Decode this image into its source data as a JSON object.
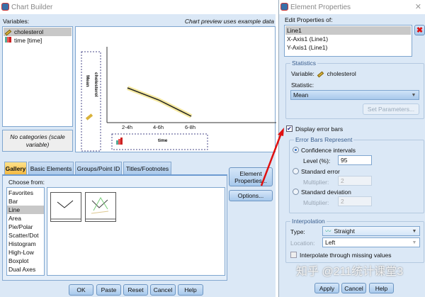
{
  "chart_builder": {
    "title": "Chart Builder",
    "variables_label": "Variables:",
    "preview_note": "Chart preview uses example data",
    "variables": [
      {
        "name": "cholesterol",
        "icon": "scale-ruler-icon",
        "selected": true
      },
      {
        "name": "time [time]",
        "icon": "ordinal-bars-icon",
        "selected": false
      }
    ],
    "no_categories": "No categories (scale variable)",
    "preview": {
      "y_axis_label_1": "Mean",
      "y_axis_label_2": "cholesterol",
      "x_axis_label": "time",
      "x_ticks": [
        "2-4h",
        "4-6h",
        "6-8h"
      ]
    },
    "tabs": [
      {
        "label": "Gallery",
        "active": true
      },
      {
        "label": "Basic Elements"
      },
      {
        "label": "Groups/Point ID"
      },
      {
        "label": "Titles/Footnotes"
      }
    ],
    "choose_from_label": "Choose from:",
    "chart_types": [
      "Favorites",
      "Bar",
      "Line",
      "Area",
      "Pie/Polar",
      "Scatter/Dot",
      "Histogram",
      "High-Low",
      "Boxplot",
      "Dual Axes"
    ],
    "selected_chart_type": "Line",
    "element_properties_button": "Element Properties...",
    "options_button": "Options...",
    "buttons": [
      "OK",
      "Paste",
      "Reset",
      "Cancel",
      "Help"
    ]
  },
  "element_properties": {
    "title": "Element Properties",
    "edit_label": "Edit Properties of:",
    "elements": [
      "Line1",
      "X-Axis1 (Line1)",
      "Y-Axis1 (Line1)"
    ],
    "selected_element": "Line1",
    "statistics": {
      "group": "Statistics",
      "variable_label": "Variable:",
      "variable": "cholesterol",
      "statistic_label": "Statistic:",
      "statistic": "Mean",
      "set_parameters": "Set Parameters..."
    },
    "display_error_bars": {
      "label": "Display error bars",
      "checked": true
    },
    "error_bars": {
      "group": "Error Bars Represent",
      "confidence": "Confidence intervals",
      "level_label": "Level (%):",
      "level": "95",
      "standard_error": "Standard error",
      "multiplier_label": "Multiplier:",
      "se_multiplier": "2",
      "standard_deviation": "Standard deviation",
      "sd_multiplier": "2",
      "selected": "confidence"
    },
    "interpolation": {
      "group": "Interpolation",
      "type_label": "Type:",
      "type": "Straight",
      "location_label": "Location:",
      "location": "Left",
      "through_missing": "Interpolate through missing values",
      "through_missing_checked": false
    },
    "buttons": [
      "Apply",
      "Cancel",
      "Help"
    ]
  },
  "watermark": "知乎 @211统计课堂3",
  "colors": {
    "accent": "#2b6cc4",
    "panel": "#dbe8f6",
    "annotation_arrow": "#e01010"
  }
}
